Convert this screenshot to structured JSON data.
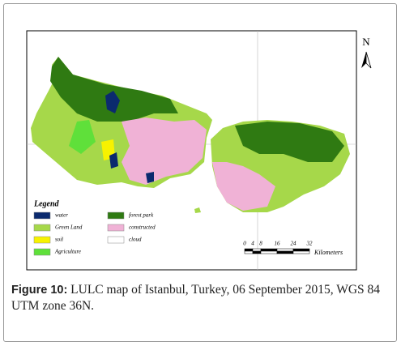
{
  "map": {
    "north": "N",
    "legend": {
      "title": "Legend",
      "items": [
        {
          "label": "water",
          "color": "#0b2a6e"
        },
        {
          "label": "forest park",
          "color": "#2f7a12"
        },
        {
          "label": "Green Land",
          "color": "#a6d84a"
        },
        {
          "label": "constructed",
          "color": "#f0b2d6"
        },
        {
          "label": "soil",
          "color": "#f7f200"
        },
        {
          "label": "cloud",
          "color": "#ffffff"
        },
        {
          "label": "Agriculture",
          "color": "#5fe03a"
        }
      ]
    },
    "scale": {
      "ticks": [
        0,
        4,
        8,
        16,
        24,
        32
      ],
      "unit": "Kilometers"
    }
  },
  "caption": {
    "label": "Figure 10:",
    "text": "LULC map of Istanbul, Turkey, 06 September 2015, WGS 84 UTM zone 36N."
  }
}
